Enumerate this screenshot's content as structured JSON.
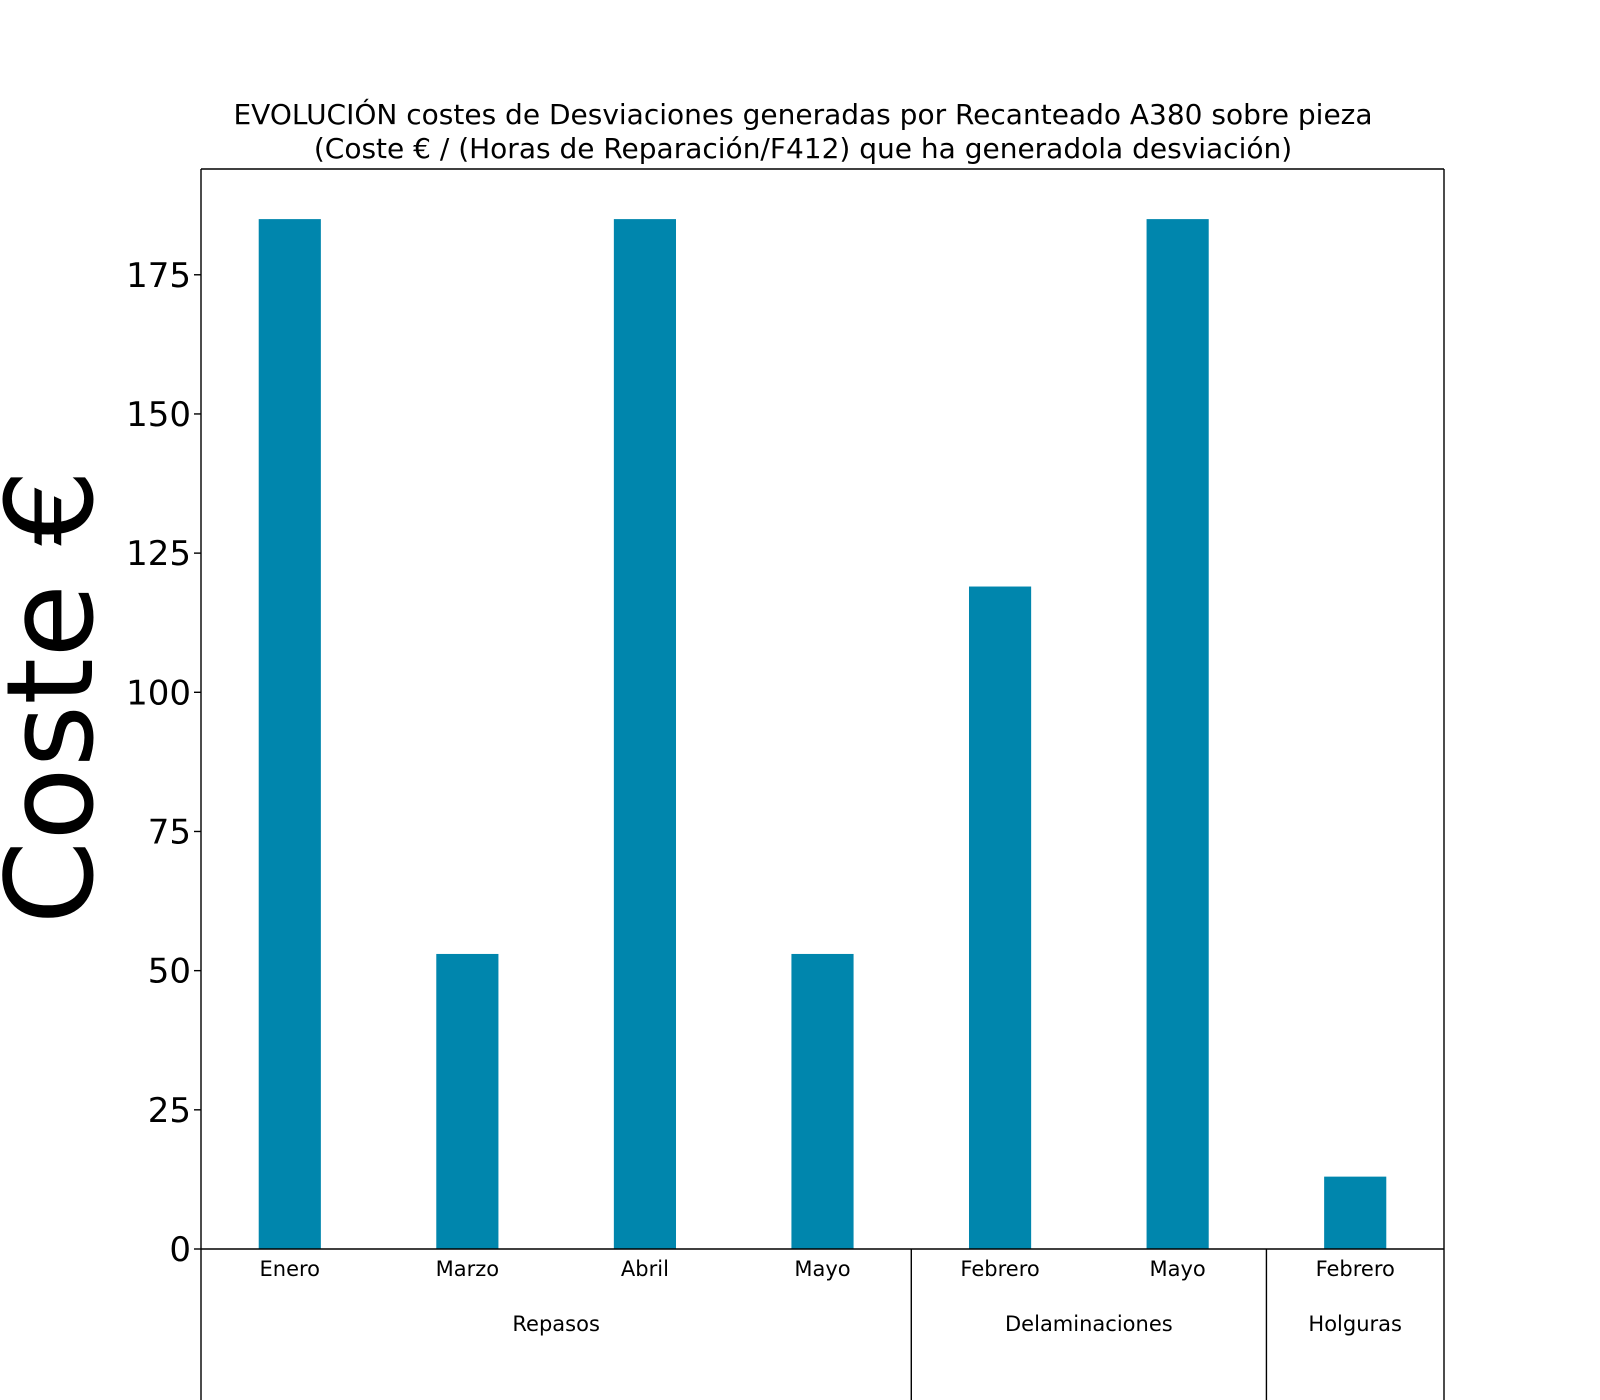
{
  "chart_data": {
    "type": "bar",
    "title": [
      "EVOLUCIÓN costes de Desviaciones  generadas  por Recanteado A380 sobre pieza",
      "(Coste € / (Horas de Reparación/F412) que ha generadola desviación)"
    ],
    "ylabel": "Coste €",
    "xlabel": "",
    "categories": [
      "Enero",
      "Marzo",
      "Abril",
      "Mayo",
      "Febrero",
      "Mayo",
      "Febrero"
    ],
    "values": [
      185,
      53,
      185,
      53,
      119,
      185,
      13
    ],
    "groups": [
      {
        "label": "Repasos",
        "count": 4
      },
      {
        "label": "Delaminaciones",
        "count": 2
      },
      {
        "label": "Holguras",
        "count": 1
      }
    ],
    "ylim": [
      0,
      194
    ],
    "yticks": [
      0,
      25,
      50,
      75,
      100,
      125,
      150,
      175
    ],
    "bar_color": "#0086ad",
    "grid": false,
    "legend": "none"
  }
}
